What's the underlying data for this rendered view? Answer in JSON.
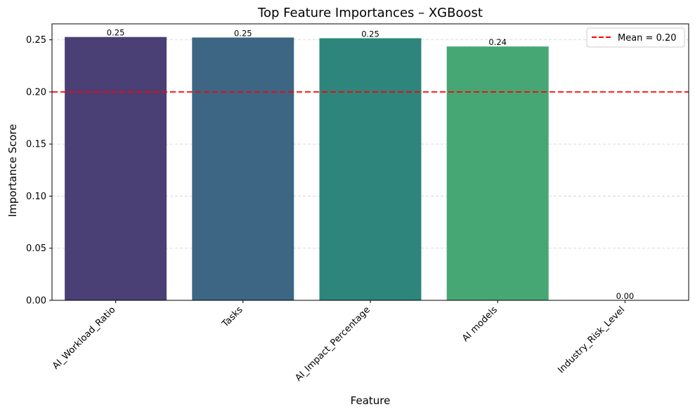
{
  "chart_data": {
    "type": "bar",
    "title": "Top Feature Importances – XGBoost",
    "xlabel": "Feature",
    "ylabel": "Importance Score",
    "categories": [
      "AI_Workload_Ratio",
      "Tasks",
      "AI_Impact_Percentage",
      "AI models",
      "Industry_Risk_Level"
    ],
    "values": [
      0.2527,
      0.2522,
      0.2515,
      0.2436,
      0.0
    ],
    "value_labels": [
      "0.25",
      "0.25",
      "0.25",
      "0.24",
      "0.00"
    ],
    "colors": [
      "#4a4076",
      "#3c6683",
      "#2d857c",
      "#46a775",
      "#86cc5b"
    ],
    "ylim": [
      0,
      0.2653
    ],
    "yticks": [
      0.0,
      0.05,
      0.1,
      0.15,
      0.2,
      0.25
    ],
    "ytick_labels": [
      "0.00",
      "0.05",
      "0.10",
      "0.15",
      "0.20",
      "0.25"
    ],
    "grid": "y-dashed",
    "mean_line": {
      "value": 0.2,
      "label": "Mean = 0.20",
      "color": "#ff0000",
      "style": "dashed"
    },
    "legend": {
      "placement": "top-right",
      "entries": [
        "Mean = 0.20"
      ]
    }
  }
}
